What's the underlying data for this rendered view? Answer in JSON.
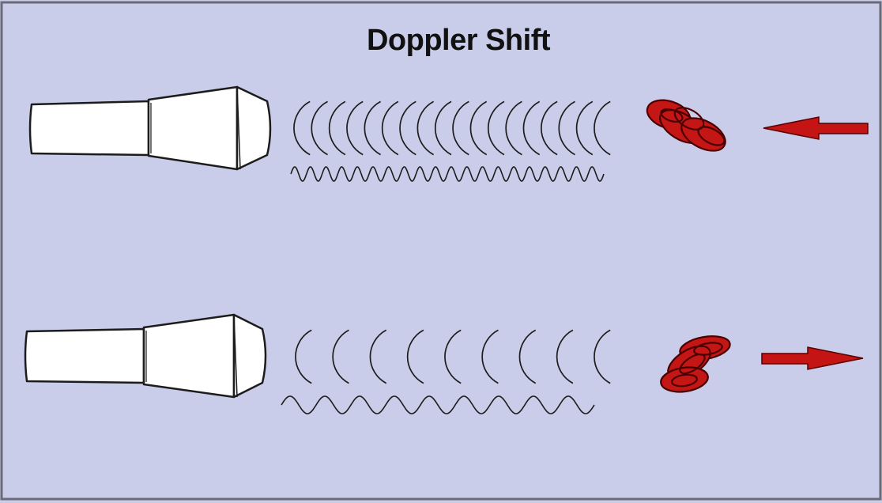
{
  "title": "Doppler Shift",
  "colors": {
    "background": "#cacde9",
    "frame": "#6b6b78",
    "ink": "#1c1c1c",
    "probe_fill": "#ffffff",
    "cell_fill": "#c51616",
    "cell_outline": "#4a0000",
    "arrow_fill": "#c41414"
  },
  "panels": [
    {
      "name": "approaching",
      "arrow_direction": "left",
      "wavefront_count": 18,
      "sine_cycles": 20
    },
    {
      "name": "receding",
      "arrow_direction": "right",
      "wavefront_count": 9,
      "sine_cycles": 9
    }
  ],
  "icons": {
    "probe": "ultrasound-transducer-icon",
    "cells": "red-blood-cells-icon",
    "arrow_left": "arrow-left-icon",
    "arrow_right": "arrow-right-icon"
  }
}
